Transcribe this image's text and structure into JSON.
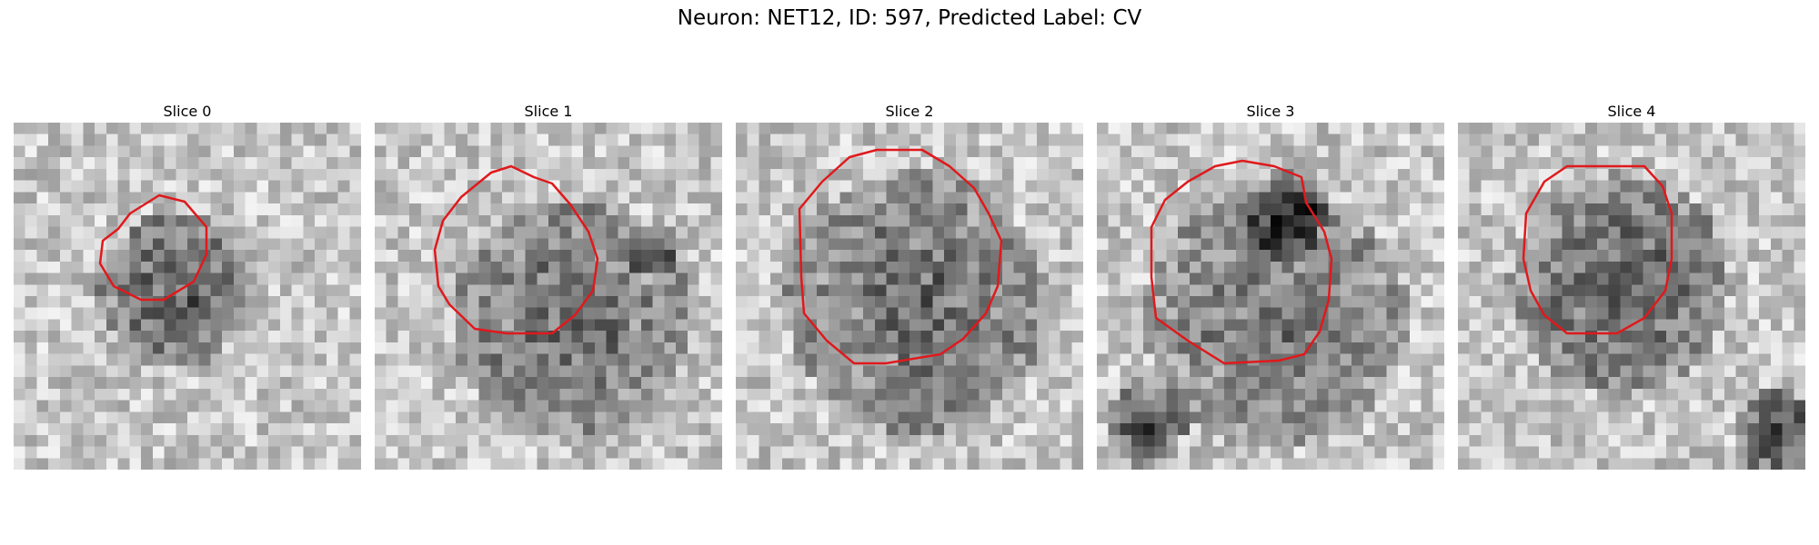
{
  "figure": {
    "title": "Neuron: NET12, ID: 597, Predicted Label: CV"
  },
  "panels": [
    {
      "title": "Slice 0",
      "seed": 11,
      "outline_color": "#e0191c",
      "contour_level": 0.3,
      "dark_blobs": [
        [
          0.45,
          0.47,
          0.22,
          0.55
        ]
      ]
    },
    {
      "title": "Slice 1",
      "seed": 23,
      "outline_color": "#e0191c",
      "contour_level": 0.56,
      "dark_blobs": [
        [
          0.55,
          0.55,
          0.34,
          0.45
        ],
        [
          0.78,
          0.35,
          0.08,
          0.4
        ]
      ]
    },
    {
      "title": "Slice 2",
      "seed": 37,
      "outline_color": "#e0191c",
      "contour_level": 0.66,
      "dark_blobs": [
        [
          0.5,
          0.5,
          0.38,
          0.45
        ]
      ]
    },
    {
      "title": "Slice 3",
      "seed": 41,
      "outline_color": "#e0191c",
      "contour_level": 0.69,
      "dark_blobs": [
        [
          0.5,
          0.55,
          0.38,
          0.4
        ],
        [
          0.52,
          0.25,
          0.12,
          0.6
        ],
        [
          0.12,
          0.85,
          0.12,
          0.6
        ]
      ]
    },
    {
      "title": "Slice 4",
      "seed": 53,
      "outline_color": "#e0191c",
      "contour_level": 0.58,
      "dark_blobs": [
        [
          0.45,
          0.45,
          0.32,
          0.5
        ],
        [
          0.9,
          0.88,
          0.12,
          0.7
        ]
      ]
    }
  ]
}
